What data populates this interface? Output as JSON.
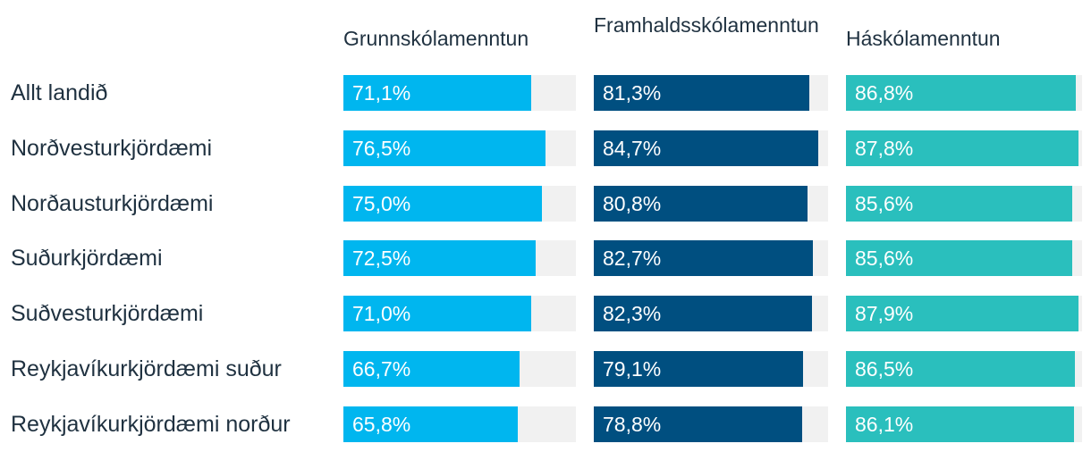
{
  "chart_data": {
    "type": "bar",
    "columns": [
      "Grunnskólamenntun",
      "Framhaldsskólamenntun",
      "Háskólamenntun"
    ],
    "categories": [
      "Allt landið",
      "Norðvesturkjördæmi",
      "Norðausturkjördæmi",
      "Suðurkjördæmi",
      "Suðvesturkjördæmi",
      "Reykjavíkurkjördæmi suður",
      "Reykjavíkurkjördæmi norður"
    ],
    "series": [
      {
        "name": "Grunnskólamenntun",
        "color": "#00b6ef",
        "values": [
          71.1,
          76.5,
          75.0,
          72.5,
          71.0,
          66.7,
          65.8
        ],
        "labels": [
          "71,1%",
          "76,5%",
          "75,0%",
          "72,5%",
          "71,0%",
          "66,7%",
          "65,8%"
        ]
      },
      {
        "name": "Framhaldsskólamenntun",
        "color": "#004f80",
        "values": [
          81.3,
          84.7,
          80.8,
          82.7,
          82.3,
          79.1,
          78.8
        ],
        "labels": [
          "81,3%",
          "84,7%",
          "80,8%",
          "82,7%",
          "82,3%",
          "79,1%",
          "78,8%"
        ]
      },
      {
        "name": "Háskólamenntun",
        "color": "#2abfbd",
        "values": [
          86.8,
          87.8,
          85.6,
          85.6,
          87.9,
          86.5,
          86.1
        ],
        "labels": [
          "86,8%",
          "87,8%",
          "85,6%",
          "85,6%",
          "87,9%",
          "86,5%",
          "86,1%"
        ]
      }
    ],
    "track_color": "#f1f1f1"
  }
}
